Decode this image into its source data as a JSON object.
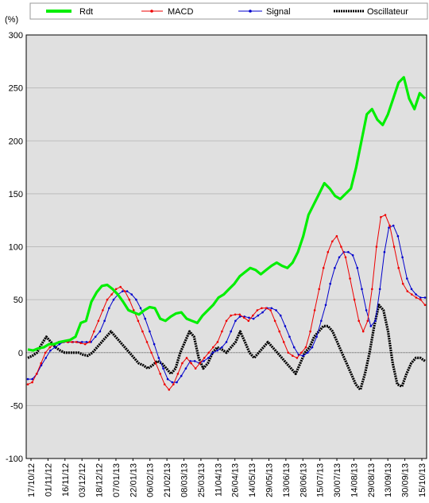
{
  "chart_data": {
    "type": "line",
    "y_unit": "(%)",
    "ylim": [
      -100,
      300
    ],
    "y_ticks": [
      300,
      250,
      200,
      150,
      100,
      50,
      0,
      -50,
      -100
    ],
    "x_tick_labels": [
      "17/10/12",
      "01/11/12",
      "16/11/12",
      "03/12/12",
      "18/12/12",
      "07/01/13",
      "22/01/13",
      "06/02/13",
      "21/02/13",
      "08/03/13",
      "25/03/13",
      "11/04/13",
      "26/04/13",
      "14/05/13",
      "29/05/13",
      "13/06/13",
      "28/06/13",
      "15/07/13",
      "30/07/13",
      "14/08/13",
      "29/08/13",
      "13/09/13",
      "30/09/13",
      "15/10/13"
    ],
    "grid": true,
    "legend_position": "top",
    "series": [
      {
        "name": "Rdt",
        "color": "#00ee00",
        "values": [
          3,
          2,
          4,
          5,
          8,
          8,
          10,
          11,
          12,
          15,
          28,
          30,
          48,
          57,
          63,
          64,
          60,
          55,
          48,
          40,
          38,
          36,
          40,
          43,
          42,
          32,
          30,
          34,
          37,
          38,
          32,
          30,
          28,
          35,
          40,
          45,
          52,
          55,
          60,
          65,
          72,
          76,
          80,
          78,
          74,
          78,
          82,
          85,
          82,
          80,
          85,
          95,
          110,
          130,
          140,
          150,
          160,
          155,
          148,
          145,
          150,
          155,
          175,
          200,
          225,
          230,
          220,
          215,
          225,
          240,
          255,
          260,
          240,
          230,
          245,
          240
        ]
      },
      {
        "name": "MACD",
        "color": "#ee0000",
        "values": [
          -30,
          -28,
          -20,
          -10,
          0,
          5,
          8,
          10,
          10,
          10,
          10,
          10,
          9,
          8,
          10,
          20,
          30,
          40,
          50,
          55,
          60,
          62,
          58,
          50,
          40,
          30,
          20,
          10,
          0,
          -10,
          -20,
          -30,
          -35,
          -30,
          -20,
          -10,
          -5,
          -10,
          -15,
          -10,
          -5,
          0,
          5,
          10,
          20,
          30,
          35,
          36,
          36,
          33,
          30,
          35,
          40,
          42,
          42,
          40,
          30,
          20,
          10,
          0,
          -3,
          -5,
          0,
          5,
          20,
          40,
          60,
          80,
          95,
          105,
          110,
          100,
          90,
          70,
          50,
          30,
          20,
          30,
          60,
          100,
          128,
          130,
          120,
          100,
          80,
          65,
          58,
          55,
          52,
          50,
          45
        ]
      },
      {
        "name": "Signal",
        "color": "#0000cc",
        "values": [
          -25,
          -25,
          -20,
          -12,
          -5,
          2,
          5,
          8,
          10,
          10,
          10,
          10,
          10,
          10,
          10,
          15,
          20,
          30,
          42,
          50,
          55,
          58,
          58,
          55,
          50,
          42,
          32,
          20,
          8,
          -5,
          -15,
          -25,
          -28,
          -28,
          -22,
          -15,
          -8,
          -8,
          -10,
          -8,
          -5,
          0,
          2,
          5,
          10,
          20,
          30,
          34,
          34,
          33,
          32,
          35,
          38,
          42,
          42,
          40,
          35,
          25,
          15,
          5,
          -2,
          -3,
          0,
          5,
          15,
          30,
          45,
          65,
          80,
          90,
          95,
          95,
          92,
          80,
          60,
          40,
          25,
          30,
          60,
          95,
          118,
          120,
          110,
          90,
          70,
          60,
          55,
          52,
          52
        ]
      },
      {
        "name": "Oscillateur",
        "color": "#000000",
        "values": [
          -5,
          -3,
          0,
          8,
          15,
          10,
          5,
          2,
          0,
          0,
          0,
          0,
          -2,
          -3,
          0,
          5,
          10,
          15,
          20,
          15,
          10,
          5,
          0,
          -5,
          -10,
          -12,
          -15,
          -12,
          -8,
          -10,
          -15,
          -20,
          -15,
          0,
          10,
          20,
          15,
          -5,
          -15,
          -10,
          0,
          5,
          3,
          0,
          5,
          10,
          20,
          10,
          0,
          -5,
          0,
          5,
          10,
          5,
          0,
          -5,
          -10,
          -15,
          -20,
          -10,
          0,
          5,
          15,
          20,
          25,
          25,
          20,
          10,
          0,
          -10,
          -20,
          -30,
          -35,
          -20,
          0,
          25,
          45,
          40,
          20,
          -10,
          -30,
          -32,
          -20,
          -10,
          -5,
          -5,
          -8
        ]
      }
    ]
  }
}
